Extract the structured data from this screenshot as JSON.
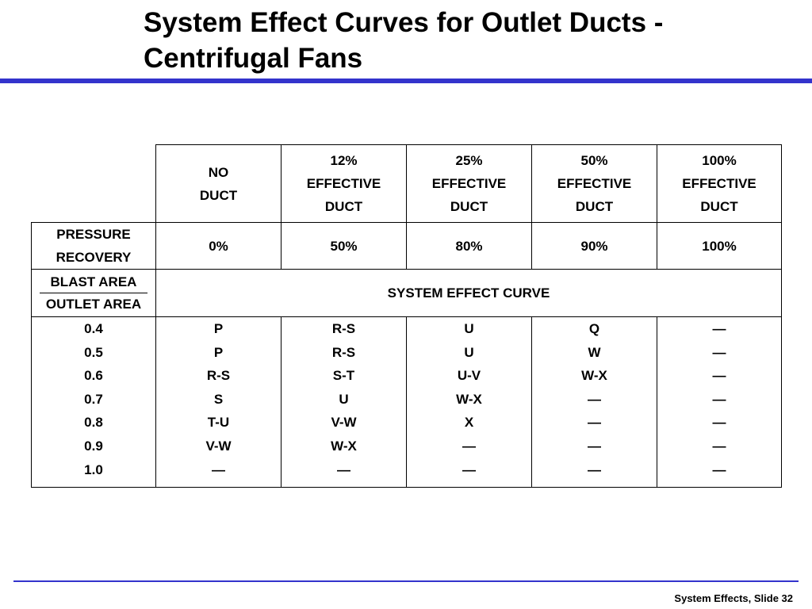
{
  "slide": {
    "title_line1": "System Effect Curves for Outlet Ducts -",
    "title_line2": "Centrifugal Fans",
    "footer": "System Effects, Slide 32"
  },
  "table": {
    "headers": [
      {
        "lines": [
          "NO",
          "DUCT"
        ]
      },
      {
        "lines": [
          "12%",
          "EFFECTIVE",
          "DUCT"
        ]
      },
      {
        "lines": [
          "25%",
          "EFFECTIVE",
          "DUCT"
        ]
      },
      {
        "lines": [
          "50%",
          "EFFECTIVE",
          "DUCT"
        ]
      },
      {
        "lines": [
          "100%",
          "EFFECTIVE",
          "DUCT"
        ]
      }
    ],
    "pressure_recovery_label": [
      "PRESSURE",
      "RECOVERY"
    ],
    "pressure_recovery": [
      "0%",
      "50%",
      "80%",
      "90%",
      "100%"
    ],
    "ratio_label_numerator": "BLAST AREA",
    "ratio_label_denominator": "OUTLET AREA",
    "section_label": "SYSTEM EFFECT CURVE",
    "ratios": [
      "0.4",
      "0.5",
      "0.6",
      "0.7",
      "0.8",
      "0.9",
      "1.0"
    ],
    "columns": [
      [
        "P",
        "P",
        "R-S",
        "S",
        "T-U",
        "V-W",
        "—"
      ],
      [
        "R-S",
        "R-S",
        "S-T",
        "U",
        "V-W",
        "W-X",
        "—"
      ],
      [
        "U",
        "U",
        "U-V",
        "W-X",
        "X",
        "—",
        "—"
      ],
      [
        "Q",
        "W",
        "W-X",
        "—",
        "—",
        "—",
        "—"
      ],
      [
        "—",
        "—",
        "—",
        "—",
        "—",
        "—",
        "—"
      ]
    ]
  }
}
